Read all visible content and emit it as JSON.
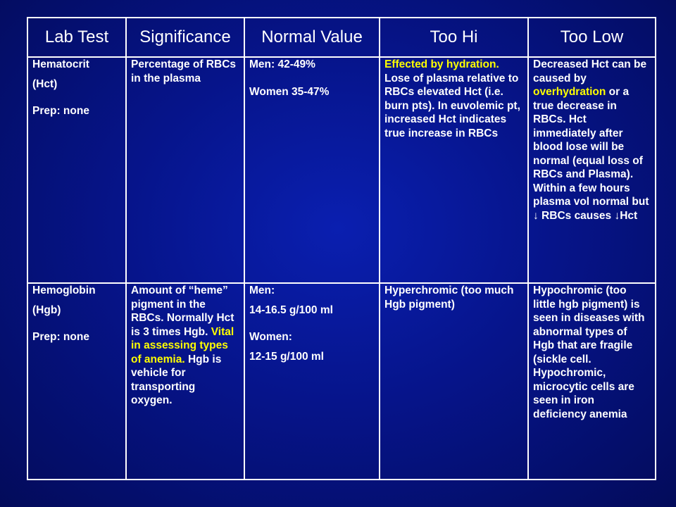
{
  "headers": [
    "Lab Test",
    "Significance",
    "Normal Value",
    "Too Hi",
    "Too Low"
  ],
  "rows": [
    {
      "lab_test": {
        "name": "Hematocrit",
        "abbr": "(Hct)",
        "prep": "Prep: none"
      },
      "significance": {
        "text": "Percentage of RBCs in the plasma"
      },
      "normal_value": {
        "line1": "Men: 42-49%",
        "line2": "Women 35-47%"
      },
      "too_hi": {
        "highlight": "Effected by hydration.",
        "text": " Lose of plasma relative to RBCs elevated Hct (i.e. burn pts). In euvolemic pt, increased Hct indicates true increase in RBCs"
      },
      "too_low": {
        "before": "Decreased Hct can be caused by ",
        "highlight": "overhydration",
        "after": " or a true decrease in RBCs. Hct immediately after blood lose will be normal (equal loss of RBCs and Plasma). Within a few hours plasma vol normal but ↓ RBCs causes ↓Hct"
      }
    },
    {
      "lab_test": {
        "name": "Hemoglobin",
        "abbr": "(Hgb)",
        "prep": "Prep: none"
      },
      "significance": {
        "before": "Amount of “heme” pigment in the RBCs. Normally Hct is 3 times Hgb. ",
        "highlight": "Vital in assessing types of anemia.",
        "after": " Hgb is vehicle for transporting oxygen."
      },
      "normal_value": {
        "men_label": "Men:",
        "men_value": "14-16.5 g/100 ml",
        "women_label": "Women:",
        "women_value": "12-15 g/100 ml"
      },
      "too_hi": {
        "text": "Hyperchromic (too much Hgb pigment)"
      },
      "too_low": {
        "text": "Hypochromic (too little hgb pigment) is seen in diseases with abnormal types of Hgb that are fragile (sickle cell. Hypochromic, microcytic cells are seen in iron deficiency anemia"
      }
    }
  ],
  "colors": {
    "background": "#06148a",
    "text": "#ffffff",
    "highlight": "#ffff00",
    "border": "#ffffff"
  }
}
